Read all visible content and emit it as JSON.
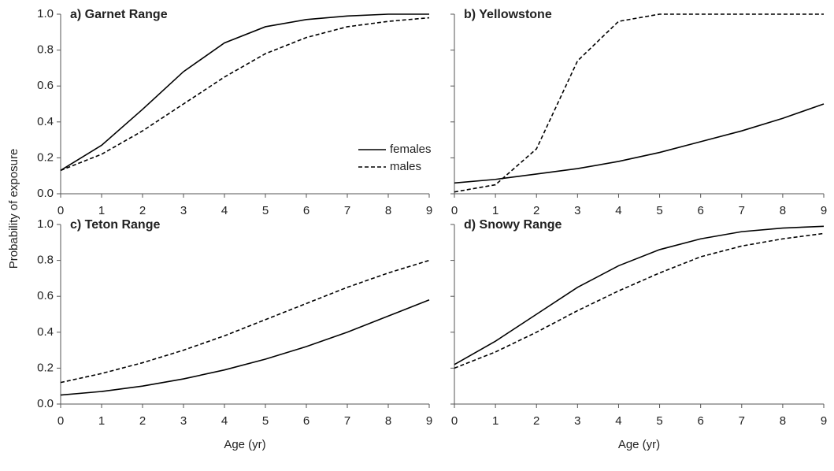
{
  "ylabel": "Probability of exposure",
  "chart_data": [
    {
      "type": "line",
      "title": "a) Garnet Range",
      "x": [
        0,
        1,
        2,
        3,
        4,
        5,
        6,
        7,
        8,
        9
      ],
      "xlim": [
        0,
        9
      ],
      "xticks": [
        0,
        1,
        2,
        3,
        4,
        5,
        6,
        7,
        8,
        9
      ],
      "ylim": [
        0,
        1
      ],
      "yticks": [
        {
          "value": 0,
          "label": "0.0"
        },
        0.2,
        0.4,
        0.6,
        0.8,
        {
          "value": 1,
          "label": "1.0"
        }
      ],
      "show_ytick_labels": true,
      "legend": true,
      "series": [
        {
          "name": "females",
          "color": "#000000",
          "dash": false,
          "values": [
            0.13,
            0.27,
            0.47,
            0.68,
            0.84,
            0.93,
            0.97,
            0.99,
            1.0,
            1.0
          ]
        },
        {
          "name": "males",
          "color": "#000000",
          "dash": true,
          "values": [
            0.13,
            0.22,
            0.35,
            0.5,
            0.65,
            0.78,
            0.87,
            0.93,
            0.96,
            0.98
          ]
        }
      ]
    },
    {
      "type": "line",
      "title": "b) Yellowstone",
      "x": [
        0,
        1,
        2,
        3,
        4,
        5,
        6,
        7,
        8,
        9
      ],
      "xlim": [
        0,
        9
      ],
      "xticks": [
        0,
        1,
        2,
        3,
        4,
        5,
        6,
        7,
        8,
        9
      ],
      "ylim": [
        0,
        1
      ],
      "yticks": [
        0,
        0.2,
        0.4,
        0.6,
        0.8,
        1
      ],
      "show_ytick_labels": false,
      "legend": false,
      "series": [
        {
          "color": "#000000",
          "dash": false,
          "values": [
            0.06,
            0.08,
            0.11,
            0.14,
            0.18,
            0.23,
            0.29,
            0.35,
            0.42,
            0.5
          ]
        },
        {
          "color": "#000000",
          "dash": true,
          "values": [
            0.01,
            0.05,
            0.25,
            0.74,
            0.96,
            1.0,
            1.0,
            1.0,
            1.0,
            1.0
          ]
        }
      ]
    },
    {
      "type": "line",
      "title": "c) Teton Range",
      "xlabel": "Age (yr)",
      "x": [
        0,
        1,
        2,
        3,
        4,
        5,
        6,
        7,
        8,
        9
      ],
      "xlim": [
        0,
        9
      ],
      "xticks": [
        0,
        1,
        2,
        3,
        4,
        5,
        6,
        7,
        8,
        9
      ],
      "ylim": [
        0,
        1
      ],
      "yticks": [
        {
          "value": 0,
          "label": "0.0"
        },
        0.2,
        0.4,
        0.6,
        0.8,
        {
          "value": 1,
          "label": "1.0"
        }
      ],
      "show_ytick_labels": true,
      "legend": false,
      "series": [
        {
          "color": "#000000",
          "dash": false,
          "values": [
            0.05,
            0.07,
            0.1,
            0.14,
            0.19,
            0.25,
            0.32,
            0.4,
            0.49,
            0.58
          ]
        },
        {
          "color": "#000000",
          "dash": true,
          "values": [
            0.12,
            0.17,
            0.23,
            0.3,
            0.38,
            0.47,
            0.56,
            0.65,
            0.73,
            0.8
          ]
        }
      ]
    },
    {
      "type": "line",
      "title": "d) Snowy Range",
      "xlabel": "Age (yr)",
      "x": [
        0,
        1,
        2,
        3,
        4,
        5,
        6,
        7,
        8,
        9
      ],
      "xlim": [
        0,
        9
      ],
      "xticks": [
        0,
        1,
        2,
        3,
        4,
        5,
        6,
        7,
        8,
        9
      ],
      "ylim": [
        0,
        1
      ],
      "yticks": [
        0,
        0.2,
        0.4,
        0.6,
        0.8,
        1
      ],
      "show_ytick_labels": false,
      "legend": false,
      "series": [
        {
          "color": "#000000",
          "dash": false,
          "values": [
            0.22,
            0.35,
            0.5,
            0.65,
            0.77,
            0.86,
            0.92,
            0.96,
            0.98,
            0.99
          ]
        },
        {
          "color": "#000000",
          "dash": true,
          "values": [
            0.2,
            0.29,
            0.4,
            0.52,
            0.63,
            0.73,
            0.82,
            0.88,
            0.92,
            0.95
          ]
        }
      ]
    }
  ]
}
